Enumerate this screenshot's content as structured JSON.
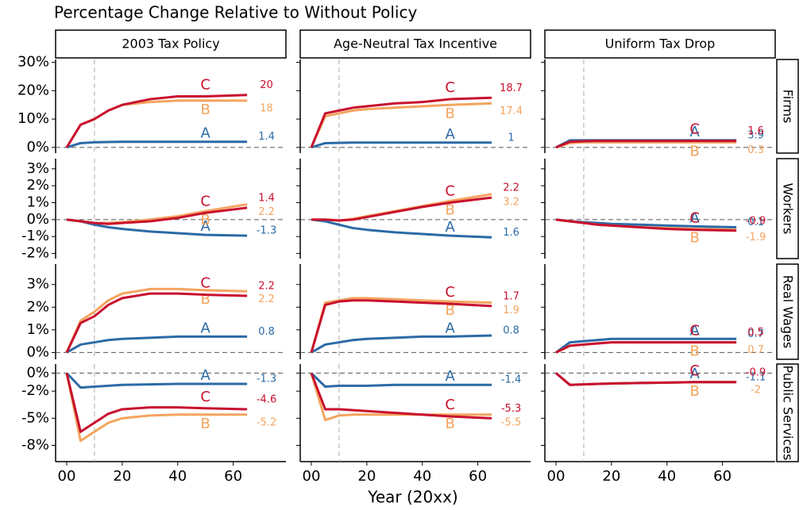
{
  "chart_data": {
    "type": "line",
    "title": "Percentage Change Relative to Without Policy",
    "x_label": "Year (20xx)",
    "columns": [
      "2003 Tax Policy",
      "Age-Neutral Tax Incentive",
      "Uniform Tax Drop"
    ],
    "x": [
      0,
      5,
      10,
      15,
      20,
      30,
      40,
      50,
      65
    ],
    "xlim": [
      -4,
      79
    ],
    "xticks": [
      {
        "value": 0,
        "label": "00"
      },
      20,
      40,
      60
    ],
    "vline": 10,
    "rows": [
      {
        "label": "Firms",
        "ylim": [
          -2,
          31
        ],
        "yticks": [
          {
            "value": 0,
            "label": "0%"
          },
          {
            "value": 10,
            "label": "10%"
          },
          {
            "value": 20,
            "label": "20%"
          },
          {
            "value": 30,
            "label": "30%"
          }
        ],
        "panels": [
          {
            "series": [
              {
                "name": "A",
                "color": "#2c6aa6",
                "values": [
                  0,
                  1.5,
                  1.8,
                  1.9,
                  2,
                  2,
                  2,
                  2,
                  2
                ],
                "end_label": "1.4"
              },
              {
                "name": "B",
                "color": "#f4a45f",
                "values": [
                  0,
                  8,
                  10,
                  13,
                  15,
                  16,
                  16.5,
                  16.5,
                  16.5
                ],
                "end_label": "18"
              },
              {
                "name": "C",
                "color": "#c8102e",
                "values": [
                  0,
                  8,
                  10,
                  13,
                  15,
                  17,
                  18,
                  18,
                  18.5
                ],
                "end_label": "20"
              }
            ]
          },
          {
            "series": [
              {
                "name": "A",
                "color": "#2c6aa6",
                "values": [
                  0,
                  1.5,
                  1.6,
                  1.7,
                  1.7,
                  1.7,
                  1.7,
                  1.7,
                  1.7
                ],
                "end_label": "1"
              },
              {
                "name": "B",
                "color": "#f4a45f",
                "values": [
                  0,
                  11,
                  12,
                  13,
                  13.5,
                  14,
                  14.5,
                  15,
                  15.5
                ],
                "end_label": "17.4"
              },
              {
                "name": "C",
                "color": "#c8102e",
                "values": [
                  0,
                  12,
                  13,
                  14,
                  14.5,
                  15.5,
                  16,
                  17,
                  17.5
                ],
                "end_label": "18.7"
              }
            ]
          },
          {
            "series": [
              {
                "name": "A",
                "color": "#2c6aa6",
                "values": [
                  0,
                  2.5,
                  2.5,
                  2.5,
                  2.5,
                  2.5,
                  2.5,
                  2.5,
                  2.5
                ],
                "end_label": "3.9"
              },
              {
                "name": "B",
                "color": "#f4a45f",
                "values": [
                  0,
                  1.5,
                  1.8,
                  1.8,
                  1.8,
                  1.8,
                  1.8,
                  1.8,
                  1.8
                ],
                "end_label": "0.3"
              },
              {
                "name": "C",
                "color": "#c8102e",
                "values": [
                  0,
                  2,
                  2.2,
                  2.3,
                  2.3,
                  2.3,
                  2.3,
                  2.3,
                  2.3
                ],
                "end_label": "1.6"
              }
            ]
          }
        ]
      },
      {
        "label": "Workers",
        "ylim": [
          -2.3,
          3.6
        ],
        "yticks": [
          {
            "value": 3,
            "label": "3%"
          },
          {
            "value": 2,
            "label": "2%"
          },
          {
            "value": 1,
            "label": "1%"
          },
          {
            "value": 0,
            "label": "0%"
          },
          {
            "value": -1,
            "label": "-1%"
          },
          {
            "value": -2,
            "label": "-2%"
          }
        ],
        "panels": [
          {
            "series": [
              {
                "name": "A",
                "color": "#2c6aa6",
                "values": [
                  0,
                  -0.1,
                  -0.3,
                  -0.45,
                  -0.55,
                  -0.7,
                  -0.8,
                  -0.9,
                  -0.95
                ],
                "end_label": "-1.3"
              },
              {
                "name": "B",
                "color": "#f4a45f",
                "values": [
                  0,
                  -0.1,
                  -0.2,
                  -0.2,
                  -0.15,
                  0,
                  0.2,
                  0.5,
                  0.9
                ],
                "end_label": "2.2"
              },
              {
                "name": "C",
                "color": "#c8102e",
                "values": [
                  0,
                  -0.1,
                  -0.2,
                  -0.25,
                  -0.2,
                  -0.1,
                  0.1,
                  0.4,
                  0.7
                ],
                "end_label": "1.4"
              }
            ]
          },
          {
            "series": [
              {
                "name": "A",
                "color": "#2c6aa6",
                "values": [
                  0,
                  -0.1,
                  -0.3,
                  -0.5,
                  -0.6,
                  -0.75,
                  -0.85,
                  -0.95,
                  -1.05
                ],
                "end_label": "1.6"
              },
              {
                "name": "B",
                "color": "#f4a45f",
                "values": [
                  0,
                  0,
                  -0.05,
                  0.05,
                  0.2,
                  0.5,
                  0.8,
                  1.1,
                  1.5
                ],
                "end_label": "3.2"
              },
              {
                "name": "C",
                "color": "#c8102e",
                "values": [
                  0,
                  0,
                  -0.05,
                  0,
                  0.15,
                  0.45,
                  0.75,
                  1.0,
                  1.3
                ],
                "end_label": "2.2"
              }
            ]
          },
          {
            "series": [
              {
                "name": "A",
                "color": "#2c6aa6",
                "values": [
                  0,
                  -0.1,
                  -0.15,
                  -0.2,
                  -0.25,
                  -0.3,
                  -0.35,
                  -0.4,
                  -0.45
                ],
                "end_label": "0.1"
              },
              {
                "name": "B",
                "color": "#f4a45f",
                "values": [
                  0,
                  -0.1,
                  -0.2,
                  -0.3,
                  -0.35,
                  -0.45,
                  -0.5,
                  -0.55,
                  -0.6
                ],
                "end_label": "-1.9"
              },
              {
                "name": "C",
                "color": "#c8102e",
                "values": [
                  0,
                  -0.1,
                  -0.2,
                  -0.3,
                  -0.35,
                  -0.45,
                  -0.55,
                  -0.6,
                  -0.65
                ],
                "end_label": "-0.9"
              }
            ]
          }
        ]
      },
      {
        "label": "Real Wages",
        "ylim": [
          -0.3,
          3.9
        ],
        "yticks": [
          {
            "value": 0,
            "label": "0%"
          },
          {
            "value": 1,
            "label": "1%"
          },
          {
            "value": 2,
            "label": "2%"
          },
          {
            "value": 3,
            "label": "3%"
          }
        ],
        "panels": [
          {
            "series": [
              {
                "name": "A",
                "color": "#2c6aa6",
                "values": [
                  0,
                  0.35,
                  0.45,
                  0.55,
                  0.6,
                  0.65,
                  0.7,
                  0.7,
                  0.7
                ],
                "end_label": "0.8"
              },
              {
                "name": "B",
                "color": "#f4a45f",
                "values": [
                  0,
                  1.4,
                  1.8,
                  2.3,
                  2.6,
                  2.8,
                  2.8,
                  2.75,
                  2.7
                ],
                "end_label": "2.2"
              },
              {
                "name": "C",
                "color": "#c8102e",
                "values": [
                  0,
                  1.3,
                  1.6,
                  2.1,
                  2.4,
                  2.6,
                  2.6,
                  2.55,
                  2.5
                ],
                "end_label": "2.2"
              }
            ]
          },
          {
            "series": [
              {
                "name": "A",
                "color": "#2c6aa6",
                "values": [
                  0,
                  0.35,
                  0.45,
                  0.55,
                  0.6,
                  0.65,
                  0.7,
                  0.7,
                  0.75
                ],
                "end_label": "0.8"
              },
              {
                "name": "B",
                "color": "#f4a45f",
                "values": [
                  0,
                  2.2,
                  2.3,
                  2.4,
                  2.4,
                  2.35,
                  2.3,
                  2.25,
                  2.2
                ],
                "end_label": "1.9"
              },
              {
                "name": "C",
                "color": "#c8102e",
                "values": [
                  0,
                  2.1,
                  2.25,
                  2.3,
                  2.3,
                  2.25,
                  2.2,
                  2.15,
                  2.05
                ],
                "end_label": "1.7"
              }
            ]
          },
          {
            "series": [
              {
                "name": "A",
                "color": "#2c6aa6",
                "values": [
                  0,
                  0.45,
                  0.5,
                  0.55,
                  0.6,
                  0.6,
                  0.6,
                  0.6,
                  0.6
                ],
                "end_label": "0.7"
              },
              {
                "name": "B",
                "color": "#f4a45f",
                "values": [
                  0,
                  0.3,
                  0.35,
                  0.4,
                  0.45,
                  0.45,
                  0.45,
                  0.45,
                  0.45
                ],
                "end_label": "0.7"
              },
              {
                "name": "C",
                "color": "#c8102e",
                "values": [
                  0,
                  0.3,
                  0.35,
                  0.4,
                  0.45,
                  0.45,
                  0.45,
                  0.45,
                  0.45
                ],
                "end_label": "0.5"
              }
            ]
          }
        ]
      },
      {
        "label": "Public Services",
        "ylim": [
          -9.8,
          1
        ],
        "yticks": [
          {
            "value": 0,
            "label": "0%"
          },
          {
            "value": -2,
            "label": "-2%"
          },
          {
            "value": -5,
            "label": "-5%"
          },
          {
            "value": -8,
            "label": "-8%"
          }
        ],
        "panels": [
          {
            "series": [
              {
                "name": "A",
                "color": "#2c6aa6",
                "values": [
                  0,
                  -1.6,
                  -1.5,
                  -1.4,
                  -1.3,
                  -1.25,
                  -1.2,
                  -1.2,
                  -1.2
                ],
                "end_label": "-1.3"
              },
              {
                "name": "B",
                "color": "#f4a45f",
                "values": [
                  0,
                  -7.5,
                  -6.5,
                  -5.5,
                  -5,
                  -4.7,
                  -4.6,
                  -4.6,
                  -4.6
                ],
                "end_label": "-5.2"
              },
              {
                "name": "C",
                "color": "#c8102e",
                "values": [
                  0,
                  -6.5,
                  -5.5,
                  -4.5,
                  -4,
                  -3.8,
                  -3.8,
                  -3.9,
                  -4
                ],
                "end_label": "-4.6"
              }
            ]
          },
          {
            "series": [
              {
                "name": "A",
                "color": "#2c6aa6",
                "values": [
                  0,
                  -1.5,
                  -1.4,
                  -1.4,
                  -1.4,
                  -1.3,
                  -1.3,
                  -1.3,
                  -1.3
                ],
                "end_label": "-1.4"
              },
              {
                "name": "B",
                "color": "#f4a45f",
                "values": [
                  0,
                  -5.2,
                  -4.7,
                  -4.6,
                  -4.6,
                  -4.6,
                  -4.6,
                  -4.6,
                  -4.6
                ],
                "end_label": "-5.5"
              },
              {
                "name": "C",
                "color": "#c8102e",
                "values": [
                  0,
                  -4,
                  -4,
                  -4.1,
                  -4.2,
                  -4.4,
                  -4.6,
                  -4.8,
                  -5
                ],
                "end_label": "-5.3"
              }
            ]
          },
          {
            "series": [
              {
                "name": "A",
                "color": "#2c6aa6",
                "values": [
                  0,
                  -1.3,
                  -1.25,
                  -1.2,
                  -1.15,
                  -1.1,
                  -1.05,
                  -1,
                  -1
                ],
                "end_label": "-1.1"
              },
              {
                "name": "B",
                "color": "#f4a45f",
                "values": [
                  0,
                  -1.3,
                  -1.25,
                  -1.2,
                  -1.15,
                  -1.1,
                  -1.05,
                  -1,
                  -1
                ],
                "end_label": "-2"
              },
              {
                "name": "C",
                "color": "#c8102e",
                "values": [
                  0,
                  -1.3,
                  -1.25,
                  -1.2,
                  -1.15,
                  -1.1,
                  -1.05,
                  -1,
                  -1
                ],
                "end_label": "-0.9"
              }
            ]
          }
        ]
      }
    ]
  }
}
